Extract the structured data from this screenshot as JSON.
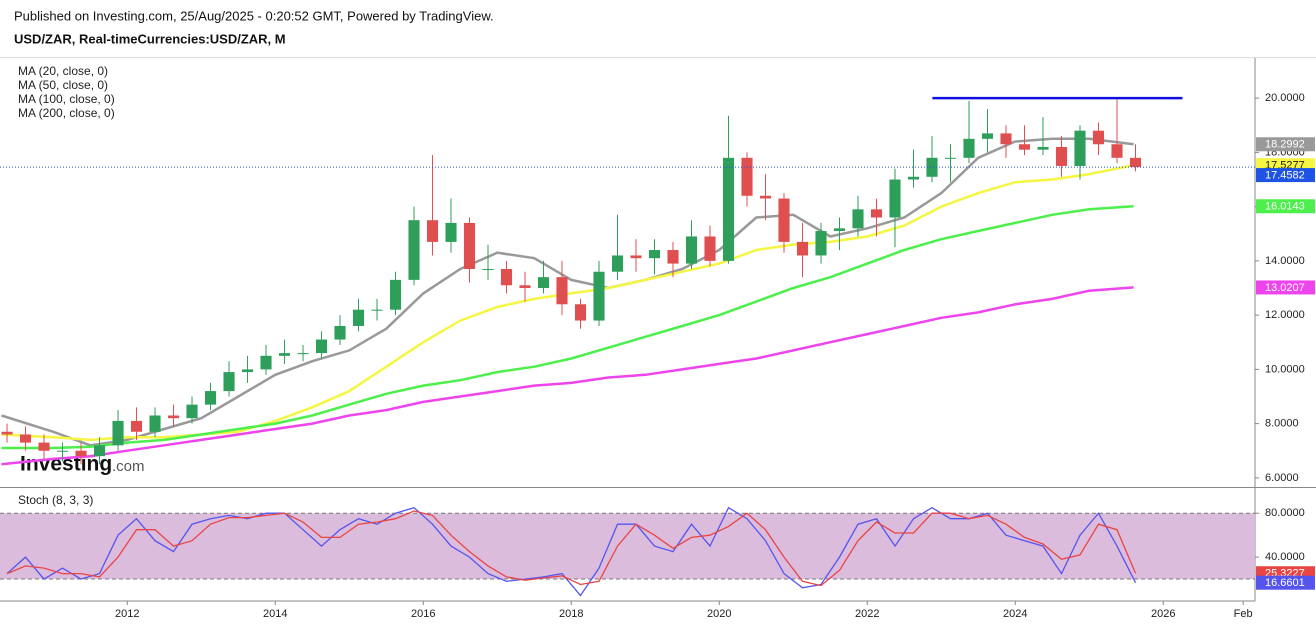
{
  "chart_data": {
    "type": "candlestick",
    "published": "Published on Investing.com, 25/Aug/2025 - 0:20:52 GMT, Powered by TradingView.",
    "title": "USD/ZAR, Real-timeCurrencies:USD/ZAR, M",
    "watermark": [
      "Investing",
      ".com"
    ],
    "x": [
      2010.25,
      2010.5,
      2010.75,
      2011.0,
      2011.25,
      2011.5,
      2011.75,
      2012.0,
      2012.25,
      2012.5,
      2012.75,
      2013.0,
      2013.25,
      2013.5,
      2013.75,
      2014.0,
      2014.25,
      2014.5,
      2014.75,
      2015.0,
      2015.25,
      2015.5,
      2015.75,
      2016.0,
      2016.25,
      2016.5,
      2016.75,
      2017.0,
      2017.25,
      2017.5,
      2017.75,
      2018.0,
      2018.25,
      2018.5,
      2018.75,
      2019.0,
      2019.25,
      2019.5,
      2019.75,
      2020.0,
      2020.25,
      2020.5,
      2020.75,
      2021.0,
      2021.25,
      2021.5,
      2021.75,
      2022.0,
      2022.25,
      2022.5,
      2022.75,
      2023.0,
      2023.25,
      2023.5,
      2023.75,
      2024.0,
      2024.25,
      2024.5,
      2024.75,
      2025.0,
      2025.25,
      2025.5
    ],
    "open": [
      7.7,
      7.6,
      7.3,
      7.0,
      7.0,
      6.8,
      7.2,
      8.1,
      7.7,
      8.3,
      8.2,
      8.7,
      9.2,
      9.9,
      10.0,
      10.5,
      10.6,
      10.6,
      11.1,
      11.6,
      12.2,
      12.2,
      13.3,
      15.5,
      14.7,
      15.4,
      13.7,
      13.7,
      13.1,
      13.0,
      13.4,
      12.4,
      11.8,
      13.6,
      14.2,
      14.1,
      14.4,
      13.9,
      14.9,
      14.0,
      17.8,
      16.4,
      16.3,
      14.7,
      14.2,
      15.1,
      15.2,
      15.9,
      15.6,
      17.0,
      17.1,
      17.8,
      17.8,
      18.5,
      18.7,
      18.3,
      18.1,
      18.2,
      17.5,
      18.8,
      18.3,
      17.8
    ],
    "high": [
      8.0,
      7.9,
      7.6,
      7.3,
      7.3,
      7.5,
      8.5,
      8.6,
      8.6,
      8.7,
      9.0,
      9.5,
      10.3,
      10.5,
      10.9,
      11.1,
      10.9,
      11.4,
      12.0,
      12.6,
      12.6,
      13.6,
      16.0,
      17.9,
      16.3,
      15.6,
      14.6,
      14.0,
      13.6,
      14.0,
      14.0,
      12.6,
      14.0,
      15.7,
      14.8,
      14.8,
      14.7,
      15.5,
      15.3,
      19.35,
      18.0,
      17.2,
      16.5,
      15.4,
      15.4,
      15.6,
      16.4,
      16.3,
      17.4,
      18.1,
      18.6,
      18.3,
      19.9,
      19.6,
      19.0,
      19.0,
      19.3,
      18.6,
      19.0,
      19.1,
      19.95,
      18.3
    ],
    "low": [
      7.3,
      7.0,
      6.7,
      6.6,
      6.5,
      6.5,
      7.0,
      7.4,
      7.5,
      7.9,
      8.0,
      8.5,
      9.0,
      9.5,
      9.8,
      10.2,
      10.3,
      10.4,
      10.9,
      11.4,
      11.8,
      12.0,
      13.1,
      14.2,
      14.3,
      13.2,
      13.3,
      12.8,
      12.5,
      12.8,
      12.0,
      11.5,
      11.6,
      13.3,
      13.6,
      13.5,
      13.4,
      13.7,
      13.8,
      13.9,
      16.0,
      15.5,
      14.3,
      13.4,
      13.9,
      14.4,
      14.9,
      14.9,
      14.5,
      16.7,
      16.9,
      16.9,
      17.6,
      18.0,
      17.8,
      17.9,
      17.9,
      17.1,
      17.0,
      17.9,
      17.6,
      17.3
    ],
    "close": [
      7.6,
      7.3,
      7.0,
      7.0,
      6.8,
      7.2,
      8.1,
      7.7,
      8.3,
      8.2,
      8.7,
      9.2,
      9.9,
      10.0,
      10.5,
      10.6,
      10.6,
      11.1,
      11.6,
      12.2,
      12.2,
      13.3,
      15.5,
      14.7,
      15.4,
      13.7,
      13.7,
      13.1,
      13.0,
      13.4,
      12.4,
      11.8,
      13.6,
      14.2,
      14.1,
      14.4,
      13.9,
      14.9,
      14.0,
      17.8,
      16.4,
      16.3,
      14.7,
      14.2,
      15.1,
      15.2,
      15.9,
      15.6,
      17.0,
      17.1,
      17.8,
      17.8,
      18.5,
      18.7,
      18.3,
      18.1,
      18.2,
      17.5,
      18.8,
      18.3,
      17.8,
      17.4582
    ],
    "up_color": "#2e9e5b",
    "down_color": "#e04f4f",
    "close_color": "#1e53e5",
    "ma_x": [
      2010.3,
      2011.0,
      2011.5,
      2012.0,
      2012.5,
      2013.0,
      2013.5,
      2014.0,
      2014.5,
      2015.0,
      2015.5,
      2016.0,
      2016.5,
      2017.0,
      2017.5,
      2018.0,
      2018.5,
      2019.0,
      2019.5,
      2020.0,
      2020.5,
      2021.0,
      2021.5,
      2022.0,
      2022.5,
      2023.0,
      2023.5,
      2024.0,
      2024.5,
      2025.0,
      2025.6
    ],
    "ma": [
      {
        "name": "MA (20, close, 0)",
        "color": "#999999",
        "values": [
          8.3,
          7.7,
          7.2,
          7.4,
          7.8,
          8.2,
          9.0,
          9.8,
          10.3,
          10.7,
          11.5,
          12.8,
          13.7,
          14.3,
          14.1,
          13.3,
          13.0,
          13.3,
          13.7,
          14.4,
          15.6,
          15.7,
          14.9,
          15.2,
          15.6,
          16.5,
          17.8,
          18.4,
          18.5,
          18.5,
          18.2992
        ]
      },
      {
        "name": "MA (50, close, 0)",
        "color": "#f5f542",
        "values": [
          7.6,
          7.5,
          7.4,
          7.5,
          7.5,
          7.6,
          7.7,
          8.1,
          8.6,
          9.2,
          10.1,
          11.0,
          11.8,
          12.3,
          12.6,
          12.8,
          13.0,
          13.3,
          13.6,
          13.9,
          14.4,
          14.6,
          14.7,
          14.9,
          15.3,
          16.0,
          16.5,
          16.9,
          17.0,
          17.2,
          17.5277
        ]
      },
      {
        "name": "MA (100, close, 0)",
        "color": "#4cef4c",
        "values": [
          7.1,
          7.1,
          7.15,
          7.3,
          7.4,
          7.6,
          7.8,
          8.0,
          8.3,
          8.7,
          9.1,
          9.4,
          9.6,
          9.9,
          10.1,
          10.4,
          10.8,
          11.2,
          11.6,
          12.0,
          12.5,
          13.0,
          13.4,
          13.9,
          14.4,
          14.8,
          15.1,
          15.4,
          15.7,
          15.9,
          16.0143
        ]
      },
      {
        "name": "MA (200, close, 0)",
        "color": "#ee44ee",
        "values": [
          6.5,
          6.7,
          6.8,
          7.0,
          7.2,
          7.4,
          7.6,
          7.8,
          8.0,
          8.3,
          8.5,
          8.8,
          9.0,
          9.2,
          9.4,
          9.5,
          9.7,
          9.8,
          10.0,
          10.2,
          10.4,
          10.7,
          11.0,
          11.3,
          11.6,
          11.9,
          12.1,
          12.4,
          12.6,
          12.9,
          13.0207
        ]
      }
    ],
    "resistance": {
      "x": [
        2022.88,
        2026.26
      ],
      "value": 20,
      "color": "#1010e0"
    },
    "xlim": [
      2010.28,
      2027.24
    ],
    "xticks": [
      2012,
      2014,
      2016,
      2018,
      2020,
      2022,
      2024,
      2026,
      {
        "value": 2027.08,
        "label": "Feb"
      }
    ],
    "ylim": [
      5.7,
      21.48
    ],
    "yticks": [
      {
        "value": 6,
        "label": "6.0000"
      },
      {
        "value": 8,
        "label": "8.0000"
      },
      {
        "value": 10,
        "label": "10.0000"
      },
      {
        "value": 12,
        "label": "12.0000"
      },
      {
        "value": 14,
        "label": "14.0000"
      },
      {
        "value": 16,
        "label": "16.0000"
      },
      {
        "value": 18,
        "label": "18.0000"
      },
      {
        "value": 20,
        "label": "20.0000"
      }
    ],
    "grid": false,
    "stoch": {
      "title": "Stoch (8, 3, 3)",
      "ylim": [
        0,
        103
      ],
      "yticks": [
        {
          "value": 80,
          "label": "80.0000"
        },
        {
          "value": 40,
          "label": "40.0000"
        }
      ],
      "bands": [
        20,
        80
      ],
      "band_color": "#dcbcdc",
      "lines": [
        {
          "color": "#5555ee",
          "values": [
            25,
            40,
            20,
            30,
            20,
            25,
            60,
            75,
            55,
            45,
            70,
            75,
            78,
            75,
            80,
            80,
            65,
            50,
            65,
            75,
            70,
            80,
            85,
            70,
            50,
            40,
            25,
            18,
            20,
            22,
            25,
            5,
            30,
            70,
            70,
            50,
            45,
            70,
            50,
            85,
            75,
            55,
            25,
            12,
            15,
            40,
            70,
            75,
            50,
            75,
            85,
            75,
            75,
            80,
            60,
            55,
            50,
            25,
            60,
            80,
            50,
            16.6601
          ]
        },
        {
          "color": "#e84545",
          "values": [
            25,
            32,
            30,
            25,
            25,
            22,
            40,
            65,
            65,
            50,
            55,
            70,
            76,
            76,
            78,
            80,
            72,
            58,
            58,
            70,
            72,
            75,
            82,
            78,
            60,
            45,
            32,
            22,
            19,
            21,
            23,
            15,
            18,
            50,
            70,
            60,
            48,
            58,
            60,
            68,
            80,
            65,
            40,
            18,
            14,
            28,
            55,
            72,
            62,
            62,
            80,
            80,
            75,
            78,
            70,
            58,
            52,
            38,
            42,
            70,
            65,
            25.3227
          ]
        }
      ]
    }
  }
}
